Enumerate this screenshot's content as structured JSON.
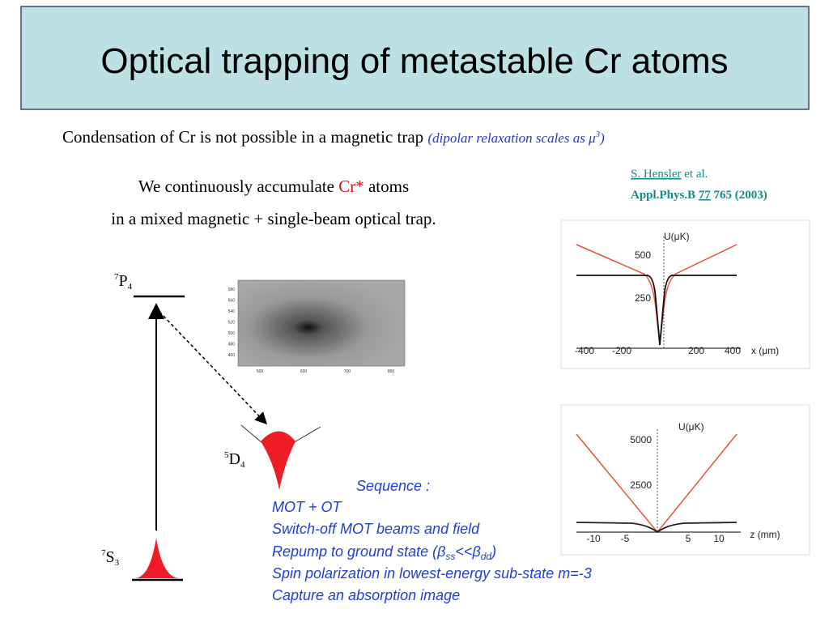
{
  "title": "Optical trapping of metastable Cr atoms",
  "subtitle": {
    "text": "Condensation of Cr is not possible in a magnetic trap",
    "note": "(dipolar relaxation scales as μ",
    "note_sup": "3",
    "note_end": ")"
  },
  "reference": {
    "author": "S. Hensler",
    "etal": "et al.",
    "journal": "Appl.Phys.B",
    "volume": "77",
    "pages": "765 (2003)"
  },
  "intro": {
    "line1_start": "We continuously accumulate",
    "highlight": "Cr*",
    "line1_end": "atoms",
    "line2": "in a mixed magnetic + single-beam optical trap."
  },
  "levels": [
    {
      "sup": "7",
      "letter": "P",
      "sub": "4"
    },
    {
      "sup": "5",
      "letter": "D",
      "sub": "4"
    },
    {
      "sup": "7",
      "letter": "S",
      "sub": "3"
    }
  ],
  "image": {
    "yticks": [
      "580",
      "560",
      "540",
      "520",
      "500",
      "480",
      "460"
    ],
    "xticks": [
      "500",
      "600",
      "700",
      "800"
    ]
  },
  "plots": [
    {
      "ylabel": "U(μK)",
      "xlabel": "x (μm)",
      "yticks": [
        "500",
        "250"
      ],
      "xticks": [
        "-400",
        "-200",
        "200",
        "400"
      ]
    },
    {
      "ylabel": "U(μK)",
      "xlabel": "z (mm)",
      "yticks": [
        "5000",
        "2500"
      ],
      "xticks": [
        "-10",
        "-5",
        "5",
        "10"
      ]
    }
  ],
  "sequence": {
    "heading": "Sequence :",
    "step1": "MOT + OT",
    "step2": "Switch-off MOT beams and field",
    "step3": {
      "start": "Repump to ground state (",
      "beta1": "β",
      "sub1": "ss",
      "mid": "<<",
      "beta2": "β",
      "sub2": "dd",
      "end": ")"
    },
    "step4": "Spin polarization in lowest-energy sub-state m=-3",
    "step5": "Capture an absorption image"
  }
}
